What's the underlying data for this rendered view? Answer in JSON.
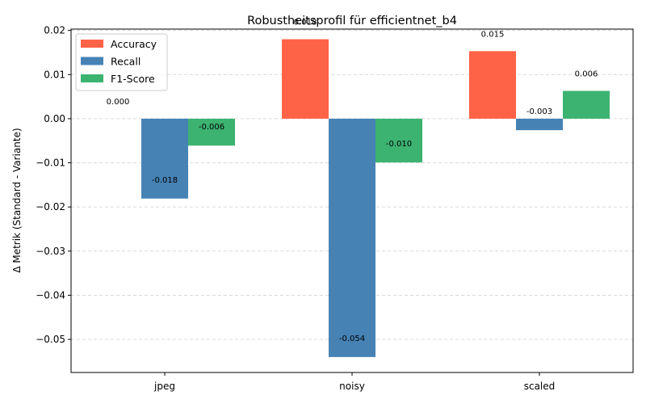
{
  "chart_data": {
    "type": "bar",
    "title": "Robustheitsprofil für efficientnet_b4",
    "xlabel": "",
    "ylabel": "Δ Metrik (Standard - Variante)",
    "categories": [
      "jpeg",
      "noisy",
      "scaled"
    ],
    "series": [
      {
        "name": "Accuracy",
        "color": "#ff6347",
        "values": [
          0.0,
          0.018,
          0.0153
        ],
        "labels": [
          "0.000",
          "0.018",
          "0.015"
        ]
      },
      {
        "name": "Recall",
        "color": "#4682b4",
        "values": [
          -0.0181,
          -0.054,
          -0.0026
        ],
        "labels": [
          "-0.018",
          "-0.054",
          "-0.003"
        ]
      },
      {
        "name": "F1-Score",
        "color": "#3cb371",
        "values": [
          -0.0061,
          -0.0099,
          0.0063
        ],
        "labels": [
          "-0.006",
          "-0.010",
          "0.006"
        ]
      }
    ],
    "ylim": [
      -0.0575,
      0.0203
    ],
    "yticks": [
      "0.02",
      "0.01",
      "0.00",
      "−0.01",
      "−0.02",
      "−0.03",
      "−0.04",
      "−0.05"
    ],
    "ytick_values": [
      0.02,
      0.01,
      0.0,
      -0.01,
      -0.02,
      -0.03,
      -0.04,
      -0.05
    ],
    "grid": "y-dashed",
    "legend_position": "top-left"
  }
}
